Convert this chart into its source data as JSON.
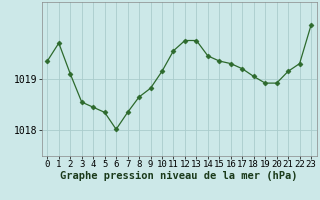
{
  "hours": [
    0,
    1,
    2,
    3,
    4,
    5,
    6,
    7,
    8,
    9,
    10,
    11,
    12,
    13,
    14,
    15,
    16,
    17,
    18,
    19,
    20,
    21,
    22,
    23
  ],
  "pressure": [
    1019.35,
    1019.7,
    1019.1,
    1018.55,
    1018.45,
    1018.35,
    1018.02,
    1018.35,
    1018.65,
    1018.82,
    1019.15,
    1019.55,
    1019.75,
    1019.75,
    1019.45,
    1019.35,
    1019.3,
    1019.2,
    1019.05,
    1018.92,
    1018.92,
    1019.15,
    1019.3,
    1020.05
  ],
  "line_color": "#2d6a2d",
  "marker": "D",
  "marker_size": 2.5,
  "background_color": "#cce8e8",
  "grid_color": "#aacccc",
  "xlabel": "Graphe pression niveau de la mer (hPa)",
  "xlabel_fontsize": 7.5,
  "yticks": [
    1018,
    1019
  ],
  "ylim": [
    1017.5,
    1020.5
  ],
  "xlim": [
    -0.5,
    23.5
  ],
  "tick_fontsize": 6.5,
  "title": ""
}
